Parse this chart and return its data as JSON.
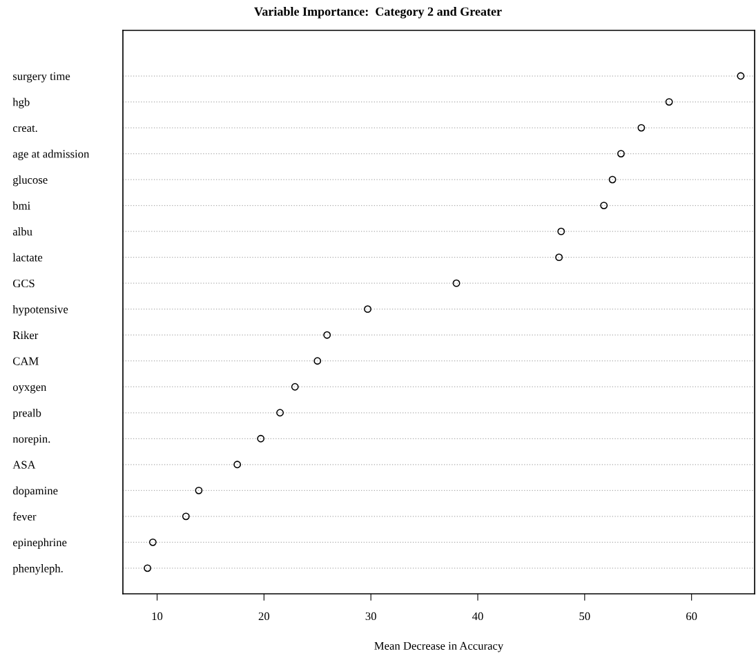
{
  "chart_data": {
    "type": "scatter",
    "orientation": "horizontal",
    "title": "Variable Importance:  Category 2 and Greater",
    "xlabel": "Mean Decrease in Accuracy",
    "categories": [
      "surgery time",
      "hgb",
      "creat.",
      "age at admission",
      "glucose",
      "bmi",
      "albu",
      "lactate",
      "GCS",
      "hypotensive",
      "Riker",
      "CAM",
      "oyxgen",
      "prealb",
      "norepin.",
      "ASA",
      "dopamine",
      "fever",
      "epinephrine",
      "phenyleph."
    ],
    "values": [
      64.6,
      57.9,
      55.3,
      53.4,
      52.6,
      51.8,
      47.8,
      47.6,
      38.0,
      29.7,
      25.9,
      25.0,
      22.9,
      21.5,
      19.7,
      17.5,
      13.9,
      12.7,
      9.6,
      9.1
    ],
    "color": "#000000",
    "marker": "circle",
    "grid": "y",
    "xlim": [
      6.8,
      65.9
    ],
    "xticks": [
      10,
      20,
      30,
      40,
      50,
      60
    ]
  }
}
